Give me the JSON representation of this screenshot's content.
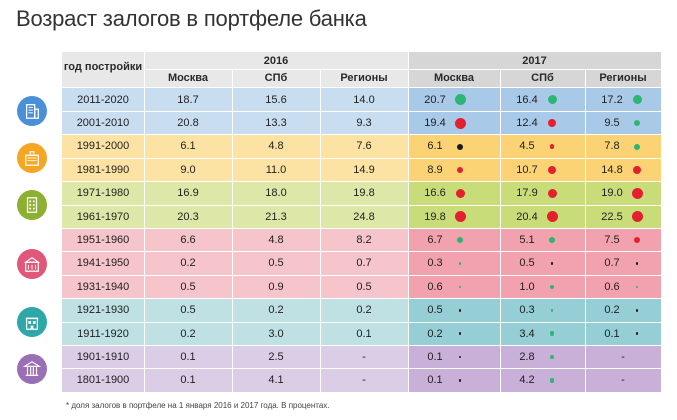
{
  "title": "Возраст залогов в портфеле банка",
  "footnote": "* доля залогов в портфеле на 1 января 2016 и 2017 года. В процентах.",
  "chart_data": {
    "type": "table",
    "row_header": "год постройки",
    "years": [
      "2016",
      "2017"
    ],
    "regions": [
      "Москва",
      "СПб",
      "Регионы"
    ],
    "rows": [
      {
        "period": "2011-2020",
        "y2016": [
          "18.7",
          "15.6",
          "14.0"
        ],
        "y2017": [
          "20.7",
          "16.4",
          "17.2"
        ],
        "dots": [
          "green",
          "green",
          "green"
        ]
      },
      {
        "period": "2001-2010",
        "y2016": [
          "20.8",
          "13.3",
          "9.3"
        ],
        "y2017": [
          "19.4",
          "12.4",
          "9.5"
        ],
        "dots": [
          "red",
          "red",
          "green"
        ]
      },
      {
        "period": "1991-2000",
        "y2016": [
          "6.1",
          "4.8",
          "7.6"
        ],
        "y2017": [
          "6.1",
          "4.5",
          "7.8"
        ],
        "dots": [
          "black",
          "red",
          "green"
        ]
      },
      {
        "period": "1981-1990",
        "y2016": [
          "9.0",
          "11.0",
          "14.9"
        ],
        "y2017": [
          "8.9",
          "10.7",
          "14.8"
        ],
        "dots": [
          "red",
          "red",
          "red"
        ]
      },
      {
        "period": "1971-1980",
        "y2016": [
          "16.9",
          "18.0",
          "19.8"
        ],
        "y2017": [
          "16.6",
          "17.9",
          "19.0"
        ],
        "dots": [
          "red",
          "red",
          "red"
        ]
      },
      {
        "period": "1961-1970",
        "y2016": [
          "20.3",
          "21.3",
          "24.8"
        ],
        "y2017": [
          "19.8",
          "20.4",
          "22.5"
        ],
        "dots": [
          "red",
          "red",
          "red"
        ]
      },
      {
        "period": "1951-1960",
        "y2016": [
          "6.6",
          "4.8",
          "8.2"
        ],
        "y2017": [
          "6.7",
          "5.1",
          "7.5"
        ],
        "dots": [
          "green",
          "green",
          "red"
        ]
      },
      {
        "period": "1941-1950",
        "y2016": [
          "0.2",
          "0.5",
          "0.7"
        ],
        "y2017": [
          "0.3",
          "0.5",
          "0.7"
        ],
        "dots": [
          "green",
          "black",
          "black"
        ]
      },
      {
        "period": "1931-1940",
        "y2016": [
          "0.5",
          "0.9",
          "0.5"
        ],
        "y2017": [
          "0.6",
          "1.0",
          "0.6"
        ],
        "dots": [
          "green",
          "green",
          "green"
        ]
      },
      {
        "period": "1921-1930",
        "y2016": [
          "0.5",
          "0.2",
          "0.2"
        ],
        "y2017": [
          "0.5",
          "0.3",
          "0.2"
        ],
        "dots": [
          "black",
          "green",
          "black"
        ]
      },
      {
        "period": "1911-1920",
        "y2016": [
          "0.2",
          "3.0",
          "0.1"
        ],
        "y2017": [
          "0.2",
          "3.4",
          "0.1"
        ],
        "dots": [
          "black",
          "green",
          "black"
        ]
      },
      {
        "period": "1901-1910",
        "y2016": [
          "0.1",
          "2.5",
          "-"
        ],
        "y2017": [
          "0.1",
          "2.8",
          "-"
        ],
        "dots": [
          "black",
          "green",
          ""
        ]
      },
      {
        "period": "1801-1900",
        "y2016": [
          "0.1",
          "4.1",
          "-"
        ],
        "y2017": [
          "0.1",
          "4.2",
          "-"
        ],
        "dots": [
          "black",
          "green",
          ""
        ]
      }
    ],
    "colors": {
      "dot_green": "#2bb673",
      "dot_red": "#e5202e",
      "dot_black": "#1a1a1a",
      "band_blue": "#c9ddf1",
      "band_blue_2017": "#a9c9e8",
      "band_orange": "#fde3a3",
      "band_orange_2017": "#fbd374",
      "band_olive": "#dde8a8",
      "band_olive_2017": "#c9dc7a",
      "band_pink": "#f6c4cb",
      "band_pink_2017": "#f2a2ae",
      "band_teal": "#bfe1e4",
      "band_teal_2017": "#95cfd5",
      "band_purple": "#dccde6",
      "band_purple_2017": "#c8b0d9",
      "header_bg": "#e8e8e8",
      "header_bg_2017": "#d6d6d6",
      "icon_blue": "#4a90d9",
      "icon_orange": "#f5a623",
      "icon_olive": "#8cb031",
      "icon_pink": "#e0577a",
      "icon_teal": "#2fa7a8",
      "icon_purple": "#9a6fb5"
    },
    "groups": [
      {
        "icon": "modern-tower-icon",
        "rows": [
          0,
          1
        ],
        "band": "blue"
      },
      {
        "icon": "office-block-icon",
        "rows": [
          2,
          3
        ],
        "band": "orange"
      },
      {
        "icon": "panel-building-icon",
        "rows": [
          4,
          5
        ],
        "band": "olive"
      },
      {
        "icon": "stalin-building-icon",
        "rows": [
          6,
          7,
          8
        ],
        "band": "pink"
      },
      {
        "icon": "historic-house-icon",
        "rows": [
          9,
          10
        ],
        "band": "teal"
      },
      {
        "icon": "classical-facade-icon",
        "rows": [
          11,
          12
        ],
        "band": "purple"
      }
    ]
  }
}
